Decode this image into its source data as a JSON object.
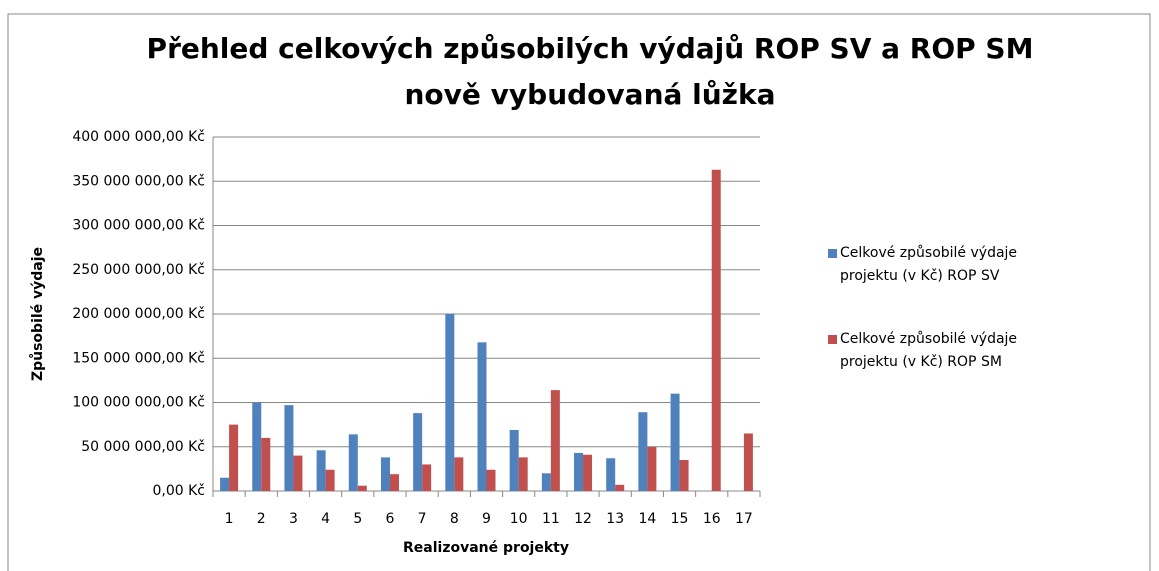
{
  "chart_data": {
    "type": "bar",
    "title": [
      "Přehled celkových způsobilých výdajů ROP SV a ROP SM",
      "nově vybudovaná lůžka"
    ],
    "x_label": "Realizované projekty",
    "y_label": "Způsobilé výdaje",
    "categories": [
      "1",
      "2",
      "3",
      "4",
      "5",
      "6",
      "7",
      "8",
      "9",
      "10",
      "11",
      "12",
      "13",
      "14",
      "15",
      "16",
      "17"
    ],
    "series": [
      {
        "name": "Celkové způsobilé výdaje projektu (v Kč) ROP SV",
        "color": "#4f81bd",
        "values": [
          15000000,
          100000000,
          97000000,
          46000000,
          64000000,
          38000000,
          88000000,
          200000000,
          168000000,
          69000000,
          20000000,
          43000000,
          37000000,
          89000000,
          110000000,
          0,
          0
        ]
      },
      {
        "name": "Celkové způsobilé výdaje projektu (v Kč) ROP SM",
        "color": "#c0504d",
        "values": [
          75000000,
          60000000,
          40000000,
          24000000,
          6000000,
          19000000,
          30000000,
          38000000,
          24000000,
          38000000,
          114000000,
          41000000,
          7000000,
          50000000,
          35000000,
          363000000,
          65000000
        ]
      }
    ],
    "ylim": [
      0,
      400000000
    ],
    "yticks": [
      {
        "value": 0,
        "label": "0,00 Kč"
      },
      {
        "value": 50000000,
        "label": "50 000 000,00 Kč"
      },
      {
        "value": 100000000,
        "label": "100 000 000,00 Kč"
      },
      {
        "value": 150000000,
        "label": "150 000 000,00 Kč"
      },
      {
        "value": 200000000,
        "label": "200 000 000,00 Kč"
      },
      {
        "value": 250000000,
        "label": "250 000 000,00 Kč"
      },
      {
        "value": 300000000,
        "label": "300 000 000,00 Kč"
      },
      {
        "value": 350000000,
        "label": "350 000 000,00 Kč"
      },
      {
        "value": 400000000,
        "label": "400 000 000,00 Kč"
      }
    ],
    "grid": true,
    "legend": "right"
  }
}
